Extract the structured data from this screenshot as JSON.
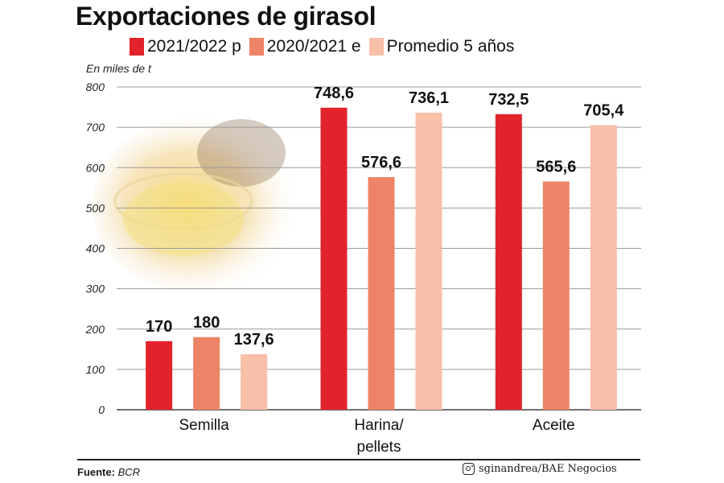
{
  "colors": {
    "series": [
      "#e2232b",
      "#ee8466",
      "#f8bfa9"
    ],
    "grid": "#9a9a9a",
    "text": "#1a1a1a"
  },
  "legend": [
    {
      "label": "2021/2022 p"
    },
    {
      "label": "2020/2021 e"
    },
    {
      "label": "Promedio 5 años"
    }
  ],
  "footer": {
    "source_label": "Fuente:",
    "source_value": "BCR",
    "credit": "sginandrea/BAE Negocios",
    "credit_icon": "instagram-icon"
  },
  "chart_data": {
    "type": "bar",
    "title": "Exportaciones de girasol",
    "unit_label": "En miles de t",
    "categories": [
      [
        "Semilla"
      ],
      [
        "Harina/",
        "pellets"
      ],
      [
        "Aceite"
      ]
    ],
    "series": [
      {
        "name": "2021/2022 p",
        "values": [
          170,
          748.6,
          732.5
        ],
        "labels": [
          "170",
          "748,6",
          "732,5"
        ]
      },
      {
        "name": "2020/2021 e",
        "values": [
          180,
          576.6,
          565.6
        ],
        "labels": [
          "180",
          "576,6",
          "565,6"
        ]
      },
      {
        "name": "Promedio 5 años",
        "values": [
          137.6,
          736.1,
          705.4
        ],
        "labels": [
          "137,6",
          "736,1",
          "705,4"
        ]
      }
    ],
    "yticks": [
      0,
      100,
      200,
      300,
      400,
      500,
      600,
      700,
      800
    ],
    "ylim": [
      0,
      800
    ],
    "grid": true,
    "legend_position": "top"
  }
}
